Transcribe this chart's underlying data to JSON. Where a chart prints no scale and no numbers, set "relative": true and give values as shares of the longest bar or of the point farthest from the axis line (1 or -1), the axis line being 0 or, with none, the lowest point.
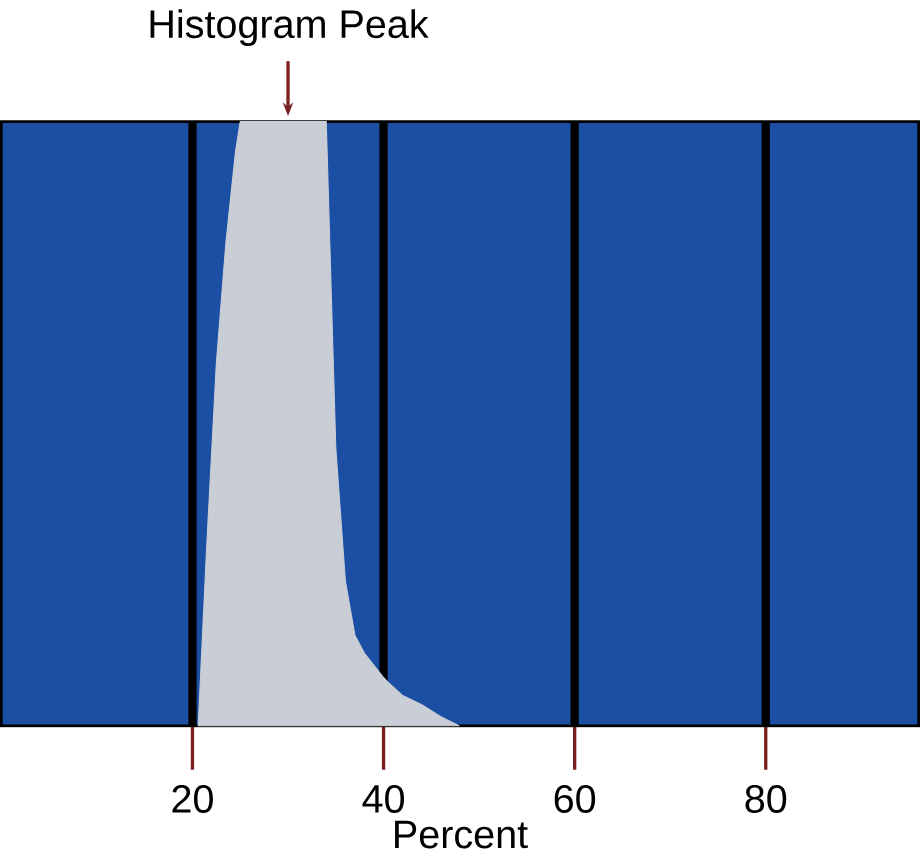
{
  "chart_data": {
    "type": "area",
    "relative": true,
    "xlabel": "Percent",
    "x": [
      20.6,
      21.5,
      22.5,
      23.5,
      24.5,
      25,
      34,
      35,
      36,
      37,
      38,
      39,
      40,
      40.6,
      42,
      44,
      46,
      47.9
    ],
    "values": [
      0,
      0.3,
      0.6,
      0.8,
      0.95,
      1,
      1,
      0.46,
      0.24,
      0.15,
      0.12,
      0.1,
      0.08,
      0.07,
      0.05,
      0.035,
      0.015,
      0
    ],
    "color": "#c9cdd6",
    "xlim": [
      0,
      96
    ],
    "xticks": [
      20,
      40,
      60,
      80
    ],
    "grid": "x",
    "annotations": [
      {
        "text": "Histogram Peak",
        "x": 30,
        "y": 1
      }
    ]
  }
}
